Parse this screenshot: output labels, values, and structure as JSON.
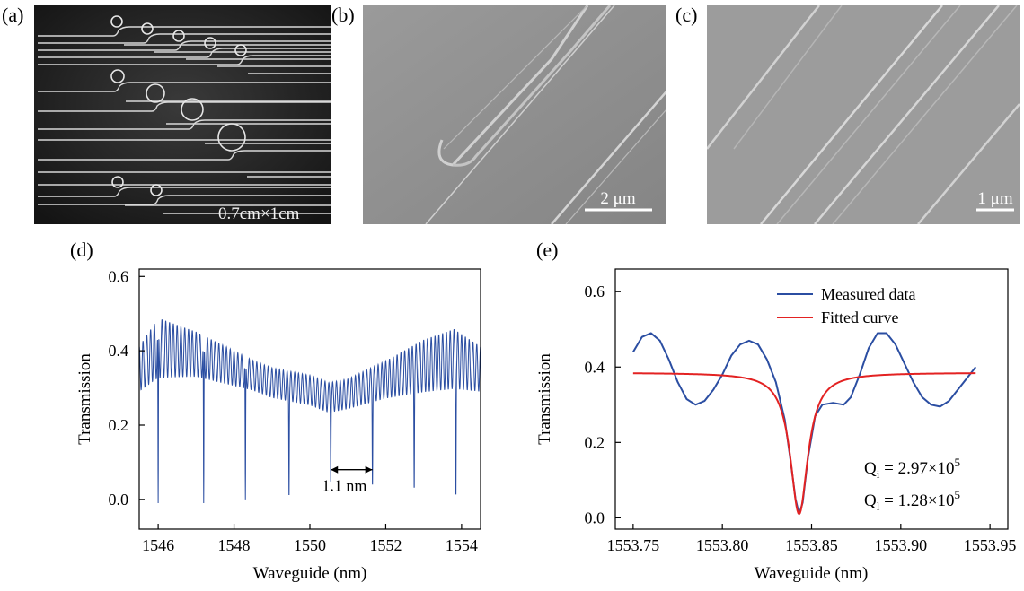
{
  "panels": {
    "a": {
      "label": "(a)",
      "scale_text": "0.7cm×1cm"
    },
    "b": {
      "label": "(b)",
      "scale_text": "2 μm"
    },
    "c": {
      "label": "(c)",
      "scale_text": "1 μm"
    },
    "d": {
      "label": "(d)"
    },
    "e": {
      "label": "(e)"
    }
  },
  "chart_data": [
    {
      "id": "d",
      "type": "line",
      "xlabel": "Waveguide (nm)",
      "ylabel": "Transmission",
      "xlim": [
        1545.5,
        1554.5
      ],
      "ylim": [
        -0.08,
        0.62
      ],
      "xticks": [
        1546,
        1548,
        1550,
        1552,
        1554
      ],
      "yticks": [
        0.0,
        0.2,
        0.4,
        0.6
      ],
      "series": [
        {
          "color": "#2b4ea2",
          "baseline": [
            [
              1545.5,
              0.36
            ],
            [
              1546.0,
              0.42
            ],
            [
              1547.0,
              0.4
            ],
            [
              1548.0,
              0.36
            ],
            [
              1549.0,
              0.32
            ],
            [
              1550.0,
              0.3
            ],
            [
              1550.5,
              0.28
            ],
            [
              1551.0,
              0.29
            ],
            [
              1552.0,
              0.33
            ],
            [
              1553.0,
              0.37
            ],
            [
              1553.8,
              0.39
            ],
            [
              1554.5,
              0.36
            ]
          ],
          "ripple_amplitude": [
            [
              1545.5,
              0.06
            ],
            [
              1546.0,
              0.08
            ],
            [
              1547.0,
              0.06
            ],
            [
              1548.5,
              0.04
            ],
            [
              1550.0,
              0.04
            ],
            [
              1551.0,
              0.04
            ],
            [
              1552.0,
              0.05
            ],
            [
              1553.0,
              0.07
            ],
            [
              1553.8,
              0.08
            ],
            [
              1554.5,
              0.06
            ]
          ],
          "ripple_fsr": 0.1,
          "dips": [
            1546.0,
            1547.2,
            1548.3,
            1549.45,
            1550.55,
            1551.65,
            1552.75,
            1553.85
          ],
          "dip_min": [
            -0.01,
            -0.01,
            0.0,
            0.0,
            0.04,
            0.03,
            0.02,
            0.0
          ]
        }
      ],
      "annotation": {
        "text": "1.1 nm",
        "x1": 1550.55,
        "x2": 1551.65,
        "y": 0.08
      }
    },
    {
      "id": "e",
      "type": "line",
      "xlabel": "Waveguide (nm)",
      "ylabel": "Transmission",
      "xlim": [
        1553.74,
        1553.96
      ],
      "ylim": [
        -0.03,
        0.66
      ],
      "xticks": [
        1553.75,
        1553.8,
        1553.85,
        1553.9,
        1553.95
      ],
      "yticks": [
        0.0,
        0.2,
        0.4,
        0.6
      ],
      "legend": {
        "placement": "top-right"
      },
      "series": [
        {
          "name": "Measured data",
          "color": "#2b4ea2",
          "points": [
            [
              1553.75,
              0.44
            ],
            [
              1553.755,
              0.48
            ],
            [
              1553.76,
              0.49
            ],
            [
              1553.765,
              0.47
            ],
            [
              1553.77,
              0.42
            ],
            [
              1553.775,
              0.36
            ],
            [
              1553.78,
              0.315
            ],
            [
              1553.785,
              0.3
            ],
            [
              1553.79,
              0.31
            ],
            [
              1553.795,
              0.34
            ],
            [
              1553.8,
              0.38
            ],
            [
              1553.805,
              0.43
            ],
            [
              1553.81,
              0.46
            ],
            [
              1553.815,
              0.47
            ],
            [
              1553.82,
              0.46
            ],
            [
              1553.825,
              0.42
            ],
            [
              1553.83,
              0.36
            ],
            [
              1553.835,
              0.26
            ],
            [
              1553.838,
              0.16
            ],
            [
              1553.841,
              0.05
            ],
            [
              1553.843,
              0.01
            ],
            [
              1553.845,
              0.04
            ],
            [
              1553.848,
              0.16
            ],
            [
              1553.852,
              0.27
            ],
            [
              1553.856,
              0.3
            ],
            [
              1553.862,
              0.305
            ],
            [
              1553.868,
              0.3
            ],
            [
              1553.872,
              0.32
            ],
            [
              1553.877,
              0.38
            ],
            [
              1553.882,
              0.45
            ],
            [
              1553.887,
              0.49
            ],
            [
              1553.892,
              0.49
            ],
            [
              1553.897,
              0.46
            ],
            [
              1553.902,
              0.41
            ],
            [
              1553.907,
              0.36
            ],
            [
              1553.912,
              0.32
            ],
            [
              1553.917,
              0.3
            ],
            [
              1553.922,
              0.295
            ],
            [
              1553.927,
              0.31
            ],
            [
              1553.932,
              0.34
            ],
            [
              1553.937,
              0.37
            ],
            [
              1553.942,
              0.4
            ]
          ]
        },
        {
          "name": "Fitted curve",
          "color": "#e32222",
          "type": "lorentzian-dip",
          "center": 1553.843,
          "baseline": 0.385,
          "min": 0.01,
          "fwhm": 0.012,
          "xrange": [
            1553.75,
            1553.942
          ]
        }
      ],
      "annotations": [
        {
          "text": "Qi = 2.97×10^5",
          "base": "Q",
          "sub": "i",
          "mid": " = 2.97×10",
          "sup": "5"
        },
        {
          "text": "Ql = 1.28×10^5",
          "base": "Q",
          "sub": "l",
          "mid": " = 1.28×10",
          "sup": "5"
        }
      ]
    }
  ]
}
